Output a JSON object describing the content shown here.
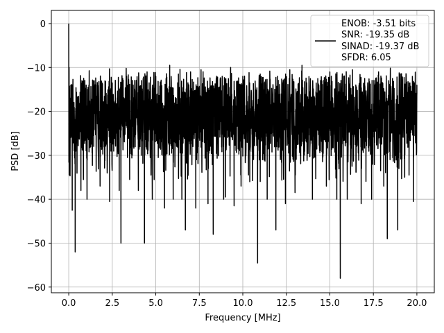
{
  "chart_data": {
    "type": "line",
    "title": "",
    "xlabel": "Frequency [MHz]",
    "ylabel": "PSD [dB]",
    "xlim": [
      -1.0,
      21.0
    ],
    "ylim": [
      -61.3,
      3.0
    ],
    "grid": true,
    "legend_position": "top-right",
    "x_ticks": [
      0.0,
      2.5,
      5.0,
      7.5,
      10.0,
      12.5,
      15.0,
      17.5,
      20.0
    ],
    "x_tick_labels": [
      "0.0",
      "2.5",
      "5.0",
      "7.5",
      "10.0",
      "12.5",
      "15.0",
      "17.5",
      "20.0"
    ],
    "y_ticks": [
      0,
      -10,
      -20,
      -30,
      -40,
      -50,
      -60
    ],
    "y_tick_labels": [
      "0",
      "−10",
      "−20",
      "−30",
      "−40",
      "−50",
      "−60"
    ],
    "legend": {
      "entries": [
        "ENOB: -3.51 bits",
        "SNR: -19.35 dB",
        "SINAD: -19.37 dB",
        "SFDR: 6.05"
      ]
    },
    "series": [
      {
        "color": "#000000",
        "x": [
          0.0,
          0.02,
          0.05,
          0.08,
          0.12,
          0.2,
          0.3,
          0.37,
          0.5,
          0.7,
          1.0,
          1.05,
          1.4,
          1.8,
          2.1,
          2.35,
          2.5,
          2.9,
          3.0,
          3.1,
          3.5,
          3.7,
          4.0,
          4.35,
          4.5,
          4.8,
          5.0,
          5.5,
          5.8,
          6.0,
          6.3,
          6.5,
          6.7,
          7.0,
          7.3,
          7.6,
          8.0,
          8.3,
          8.5,
          8.9,
          9.0,
          9.3,
          9.5,
          9.9,
          10.0,
          10.4,
          10.85,
          11.0,
          11.4,
          11.9,
          12.0,
          12.45,
          12.7,
          13.0,
          13.4,
          14.0,
          14.5,
          14.8,
          15.0,
          15.4,
          15.6,
          15.8,
          16.0,
          16.3,
          16.8,
          17.0,
          17.4,
          17.8,
          18.1,
          18.3,
          18.6,
          18.9,
          19.0,
          19.3,
          19.6,
          19.8,
          20.0
        ],
        "y": [
          0.0,
          -10.0,
          -18.0,
          -26.0,
          -14.0,
          -42.5,
          -22.0,
          -52.0,
          -17.0,
          -38.0,
          -14.0,
          -40.0,
          -13.0,
          -37.0,
          -15.0,
          -40.5,
          -13.5,
          -38.0,
          -50.0,
          -12.5,
          -35.5,
          -14.0,
          -38.0,
          -50.0,
          -11.0,
          -40.0,
          -12.0,
          -42.0,
          -9.5,
          -40.0,
          -11.5,
          -40.0,
          -47.0,
          -11.0,
          -42.0,
          -10.5,
          -41.0,
          -48.0,
          -12.0,
          -40.0,
          -39.5,
          -10.0,
          -41.5,
          -37.0,
          -12.0,
          -36.0,
          -54.5,
          -11.5,
          -40.0,
          -47.0,
          -12.0,
          -41.0,
          -10.5,
          -38.5,
          -9.5,
          -40.0,
          -13.0,
          -37.0,
          -11.0,
          -40.0,
          -58.0,
          -12.0,
          -40.0,
          -10.5,
          -41.0,
          -12.5,
          -40.0,
          -11.0,
          -37.0,
          -49.0,
          -12.5,
          -47.0,
          -14.0,
          -35.0,
          -13.5,
          -40.5,
          -14.0
        ]
      }
    ]
  }
}
